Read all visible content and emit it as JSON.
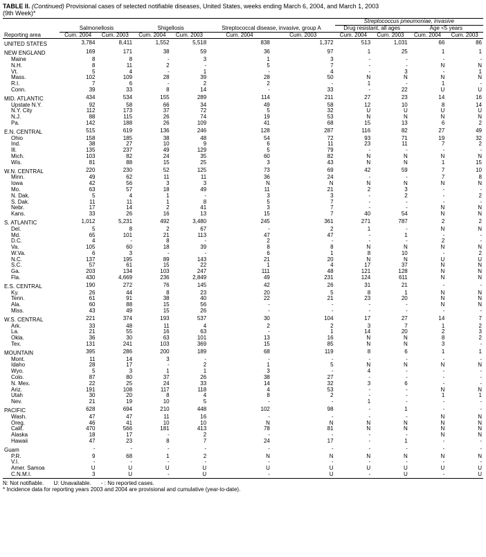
{
  "title_line1": "TABLE II.",
  "title_cont": " (Continued)",
  "title_rest": " Provisional cases of selected notifiable diseases, United States, weeks ending March 6, 2004, and March 1, 2003",
  "title_line2": "(9th Week)*",
  "head": {
    "reporting_area": "Reporting area",
    "salmon": "Salmonellosis",
    "shig": "Shigellosis",
    "strep_a": "Streptococcal disease, invasive, group A",
    "strep_pneu": "Streptococcus pneumoniae, invasive",
    "drug_res": "Drug resistant, all ages",
    "age5": "Age <5 years",
    "cum04": "Cum. 2004",
    "cum03": "Cum. 2003"
  },
  "rows": [
    {
      "t": "h",
      "a": "UNITED STATES",
      "v": [
        "3,784",
        "8,411",
        "1,552",
        "5,518",
        "838",
        "1,372",
        "513",
        "1,031",
        "66",
        "86"
      ]
    },
    {
      "t": "h",
      "a": "NEW ENGLAND",
      "v": [
        "169",
        "171",
        "38",
        "59",
        "36",
        "97",
        "1",
        "25",
        "1",
        "1"
      ]
    },
    {
      "t": "s",
      "a": "Maine",
      "v": [
        "8",
        "8",
        "-",
        "3",
        "1",
        "3",
        "-",
        "-",
        "-",
        "-"
      ]
    },
    {
      "t": "s",
      "a": "N.H.",
      "v": [
        "8",
        "11",
        "2",
        "-",
        "5",
        "7",
        "-",
        "-",
        "N",
        "N"
      ]
    },
    {
      "t": "s",
      "a": "Vt.",
      "v": [
        "5",
        "4",
        "-",
        "1",
        "-",
        "4",
        "-",
        "3",
        "-",
        "1"
      ]
    },
    {
      "t": "s",
      "a": "Mass.",
      "v": [
        "102",
        "109",
        "28",
        "39",
        "28",
        "50",
        "N",
        "N",
        "N",
        "N"
      ]
    },
    {
      "t": "s",
      "a": "R.I.",
      "v": [
        "7",
        "6",
        "-",
        "2",
        "2",
        "-",
        "1",
        "-",
        "1",
        "-"
      ]
    },
    {
      "t": "s",
      "a": "Conn.",
      "v": [
        "39",
        "33",
        "8",
        "14",
        "-",
        "33",
        "-",
        "22",
        "U",
        "U"
      ]
    },
    {
      "t": "h",
      "a": "MID. ATLANTIC",
      "v": [
        "434",
        "534",
        "155",
        "289",
        "114",
        "211",
        "27",
        "23",
        "14",
        "16"
      ]
    },
    {
      "t": "s",
      "a": "Upstate N.Y.",
      "v": [
        "92",
        "58",
        "66",
        "34",
        "49",
        "58",
        "12",
        "10",
        "8",
        "14"
      ]
    },
    {
      "t": "s",
      "a": "N.Y. City",
      "v": [
        "112",
        "173",
        "37",
        "72",
        "5",
        "32",
        "U",
        "U",
        "U",
        "U"
      ]
    },
    {
      "t": "s",
      "a": "N.J.",
      "v": [
        "88",
        "115",
        "26",
        "74",
        "19",
        "53",
        "N",
        "N",
        "N",
        "N"
      ]
    },
    {
      "t": "s",
      "a": "Pa.",
      "v": [
        "142",
        "188",
        "26",
        "109",
        "41",
        "68",
        "15",
        "13",
        "6",
        "2"
      ]
    },
    {
      "t": "h",
      "a": "E.N. CENTRAL",
      "v": [
        "515",
        "619",
        "136",
        "246",
        "128",
        "287",
        "116",
        "82",
        "27",
        "49"
      ]
    },
    {
      "t": "s",
      "a": "Ohio",
      "v": [
        "158",
        "185",
        "38",
        "48",
        "54",
        "72",
        "93",
        "71",
        "19",
        "32"
      ]
    },
    {
      "t": "s",
      "a": "Ind.",
      "v": [
        "38",
        "27",
        "10",
        "9",
        "6",
        "11",
        "23",
        "11",
        "7",
        "2"
      ]
    },
    {
      "t": "s",
      "a": "Ill.",
      "v": [
        "135",
        "237",
        "49",
        "129",
        "5",
        "79",
        "-",
        "-",
        "-",
        "-"
      ]
    },
    {
      "t": "s",
      "a": "Mich.",
      "v": [
        "103",
        "82",
        "24",
        "35",
        "60",
        "82",
        "N",
        "N",
        "N",
        "N"
      ]
    },
    {
      "t": "s",
      "a": "Wis.",
      "v": [
        "81",
        "88",
        "15",
        "25",
        "3",
        "43",
        "N",
        "N",
        "1",
        "15"
      ]
    },
    {
      "t": "h",
      "a": "W.N. CENTRAL",
      "v": [
        "220",
        "230",
        "52",
        "125",
        "73",
        "69",
        "42",
        "59",
        "7",
        "10"
      ]
    },
    {
      "t": "s",
      "a": "Minn.",
      "v": [
        "49",
        "62",
        "11",
        "11",
        "36",
        "24",
        "-",
        "-",
        "7",
        "8"
      ]
    },
    {
      "t": "s",
      "a": "Iowa",
      "v": [
        "42",
        "56",
        "3",
        "3",
        "N",
        "N",
        "N",
        "N",
        "N",
        "N"
      ]
    },
    {
      "t": "s",
      "a": "Mo.",
      "v": [
        "63",
        "57",
        "18",
        "49",
        "11",
        "21",
        "2",
        "3",
        "-",
        "-"
      ]
    },
    {
      "t": "s",
      "a": "N. Dak.",
      "v": [
        "5",
        "4",
        "1",
        "-",
        "3",
        "3",
        "-",
        "2",
        "-",
        "2"
      ]
    },
    {
      "t": "s",
      "a": "S. Dak.",
      "v": [
        "11",
        "11",
        "1",
        "8",
        "5",
        "7",
        "-",
        "-",
        "-",
        "-"
      ]
    },
    {
      "t": "s",
      "a": "Nebr.",
      "v": [
        "17",
        "14",
        "2",
        "41",
        "3",
        "7",
        "-",
        "-",
        "N",
        "N"
      ]
    },
    {
      "t": "s",
      "a": "Kans.",
      "v": [
        "33",
        "26",
        "16",
        "13",
        "15",
        "7",
        "40",
        "54",
        "N",
        "N"
      ]
    },
    {
      "t": "h",
      "a": "S. ATLANTIC",
      "v": [
        "1,012",
        "5,231",
        "492",
        "3,480",
        "245",
        "361",
        "271",
        "787",
        "2",
        "2"
      ]
    },
    {
      "t": "s",
      "a": "Del.",
      "v": [
        "5",
        "8",
        "2",
        "67",
        "-",
        "2",
        "1",
        "-",
        "N",
        "N"
      ]
    },
    {
      "t": "s",
      "a": "Md.",
      "v": [
        "65",
        "101",
        "21",
        "113",
        "47",
        "47",
        "-",
        "1",
        "-",
        "-"
      ]
    },
    {
      "t": "s",
      "a": "D.C.",
      "v": [
        "4",
        "-",
        "8",
        "-",
        "2",
        "-",
        "-",
        "-",
        "2",
        "-"
      ]
    },
    {
      "t": "s",
      "a": "Va.",
      "v": [
        "105",
        "60",
        "18",
        "39",
        "8",
        "8",
        "N",
        "N",
        "N",
        "N"
      ]
    },
    {
      "t": "s",
      "a": "W.Va.",
      "v": [
        "6",
        "3",
        "-",
        "-",
        "6",
        "1",
        "8",
        "10",
        "-",
        "2"
      ]
    },
    {
      "t": "s",
      "a": "N.C.",
      "v": [
        "137",
        "195",
        "89",
        "143",
        "21",
        "20",
        "N",
        "N",
        "U",
        "U"
      ]
    },
    {
      "t": "s",
      "a": "S.C.",
      "v": [
        "57",
        "61",
        "15",
        "22",
        "1",
        "4",
        "17",
        "37",
        "N",
        "N"
      ]
    },
    {
      "t": "s",
      "a": "Ga.",
      "v": [
        "203",
        "134",
        "103",
        "247",
        "111",
        "48",
        "121",
        "128",
        "N",
        "N"
      ]
    },
    {
      "t": "s",
      "a": "Fla.",
      "v": [
        "430",
        "4,669",
        "236",
        "2,849",
        "49",
        "231",
        "124",
        "611",
        "N",
        "N"
      ]
    },
    {
      "t": "h",
      "a": "E.S. CENTRAL",
      "v": [
        "190",
        "272",
        "76",
        "145",
        "42",
        "26",
        "31",
        "21",
        "-",
        "-"
      ]
    },
    {
      "t": "s",
      "a": "Ky.",
      "v": [
        "26",
        "44",
        "8",
        "23",
        "20",
        "5",
        "8",
        "1",
        "N",
        "N"
      ]
    },
    {
      "t": "s",
      "a": "Tenn.",
      "v": [
        "61",
        "91",
        "38",
        "40",
        "22",
        "21",
        "23",
        "20",
        "N",
        "N"
      ]
    },
    {
      "t": "s",
      "a": "Ala.",
      "v": [
        "60",
        "88",
        "15",
        "56",
        "-",
        "-",
        "-",
        "-",
        "N",
        "N"
      ]
    },
    {
      "t": "s",
      "a": "Miss.",
      "v": [
        "43",
        "49",
        "15",
        "26",
        "-",
        "-",
        "-",
        "-",
        "-",
        "-"
      ]
    },
    {
      "t": "h",
      "a": "W.S. CENTRAL",
      "v": [
        "221",
        "374",
        "193",
        "537",
        "30",
        "104",
        "17",
        "27",
        "14",
        "7"
      ]
    },
    {
      "t": "s",
      "a": "Ark.",
      "v": [
        "33",
        "48",
        "11",
        "4",
        "2",
        "2",
        "3",
        "7",
        "1",
        "2"
      ]
    },
    {
      "t": "s",
      "a": "La.",
      "v": [
        "21",
        "55",
        "16",
        "63",
        "-",
        "1",
        "14",
        "20",
        "2",
        "3"
      ]
    },
    {
      "t": "s",
      "a": "Okla.",
      "v": [
        "36",
        "30",
        "63",
        "101",
        "13",
        "16",
        "N",
        "N",
        "8",
        "2"
      ]
    },
    {
      "t": "s",
      "a": "Tex.",
      "v": [
        "131",
        "241",
        "103",
        "369",
        "15",
        "85",
        "N",
        "N",
        "3",
        "-"
      ]
    },
    {
      "t": "h",
      "a": "MOUNTAIN",
      "v": [
        "395",
        "286",
        "200",
        "189",
        "68",
        "119",
        "8",
        "6",
        "1",
        "1"
      ]
    },
    {
      "t": "s",
      "a": "Mont.",
      "v": [
        "11",
        "14",
        "3",
        "-",
        "-",
        "-",
        "-",
        "-",
        "-",
        "-"
      ]
    },
    {
      "t": "s",
      "a": "Idaho",
      "v": [
        "28",
        "17",
        "-",
        "2",
        "1",
        "5",
        "N",
        "N",
        "N",
        "N"
      ]
    },
    {
      "t": "s",
      "a": "Wyo.",
      "v": [
        "5",
        "3",
        "1",
        "1",
        "3",
        "-",
        "4",
        "-",
        "-",
        "-"
      ]
    },
    {
      "t": "s",
      "a": "Colo.",
      "v": [
        "87",
        "80",
        "37",
        "26",
        "38",
        "27",
        "-",
        "-",
        "-",
        "-"
      ]
    },
    {
      "t": "s",
      "a": "N. Mex.",
      "v": [
        "22",
        "25",
        "24",
        "33",
        "14",
        "32",
        "3",
        "6",
        "-",
        "-"
      ]
    },
    {
      "t": "s",
      "a": "Ariz.",
      "v": [
        "191",
        "108",
        "117",
        "118",
        "4",
        "53",
        "-",
        "-",
        "N",
        "N"
      ]
    },
    {
      "t": "s",
      "a": "Utah",
      "v": [
        "30",
        "20",
        "8",
        "4",
        "8",
        "2",
        "-",
        "-",
        "1",
        "1"
      ]
    },
    {
      "t": "s",
      "a": "Nev.",
      "v": [
        "21",
        "19",
        "10",
        "5",
        "-",
        "-",
        "1",
        "-",
        "-",
        "-"
      ]
    },
    {
      "t": "h",
      "a": "PACIFIC",
      "v": [
        "628",
        "694",
        "210",
        "448",
        "102",
        "98",
        "-",
        "1",
        "-",
        "-"
      ]
    },
    {
      "t": "s",
      "a": "Wash.",
      "v": [
        "47",
        "47",
        "11",
        "16",
        "-",
        "-",
        "-",
        "-",
        "N",
        "N"
      ]
    },
    {
      "t": "s",
      "a": "Oreg.",
      "v": [
        "46",
        "41",
        "10",
        "10",
        "N",
        "N",
        "N",
        "N",
        "N",
        "N"
      ]
    },
    {
      "t": "s",
      "a": "Calif.",
      "v": [
        "470",
        "566",
        "181",
        "413",
        "78",
        "81",
        "N",
        "N",
        "N",
        "N"
      ]
    },
    {
      "t": "s",
      "a": "Alaska",
      "v": [
        "18",
        "17",
        "-",
        "2",
        "-",
        "-",
        "-",
        "-",
        "N",
        "N"
      ]
    },
    {
      "t": "s",
      "a": "Hawaii",
      "v": [
        "47",
        "23",
        "8",
        "7",
        "24",
        "17",
        "-",
        "1",
        "-",
        "-"
      ]
    },
    {
      "t": "h",
      "a": "Guam",
      "v": [
        "-",
        "-",
        "-",
        "-",
        "-",
        "-",
        "-",
        "-",
        "-",
        "-"
      ]
    },
    {
      "t": "s",
      "a": "P.R.",
      "v": [
        "9",
        "68",
        "1",
        "2",
        "N",
        "N",
        "N",
        "N",
        "N",
        "N"
      ]
    },
    {
      "t": "s",
      "a": "V.I.",
      "v": [
        "-",
        "-",
        "-",
        "-",
        "-",
        "-",
        "-",
        "-",
        "-",
        "-"
      ]
    },
    {
      "t": "s",
      "a": "Amer. Samoa",
      "v": [
        "U",
        "U",
        "U",
        "U",
        "U",
        "U",
        "U",
        "U",
        "U",
        "U"
      ]
    },
    {
      "t": "s",
      "a": "C.N.M.I.",
      "v": [
        "3",
        "U",
        "-",
        "U",
        "-",
        "U",
        "-",
        "U",
        "-",
        "U"
      ]
    }
  ],
  "footnotes": {
    "n": "N: Not notifiable.",
    "u": "U: Unavailable.",
    "dash": "- : No reported cases.",
    "star": "* Incidence data for reporting years 2003 and 2004 are provisional and cumulative (year-to-date)."
  }
}
